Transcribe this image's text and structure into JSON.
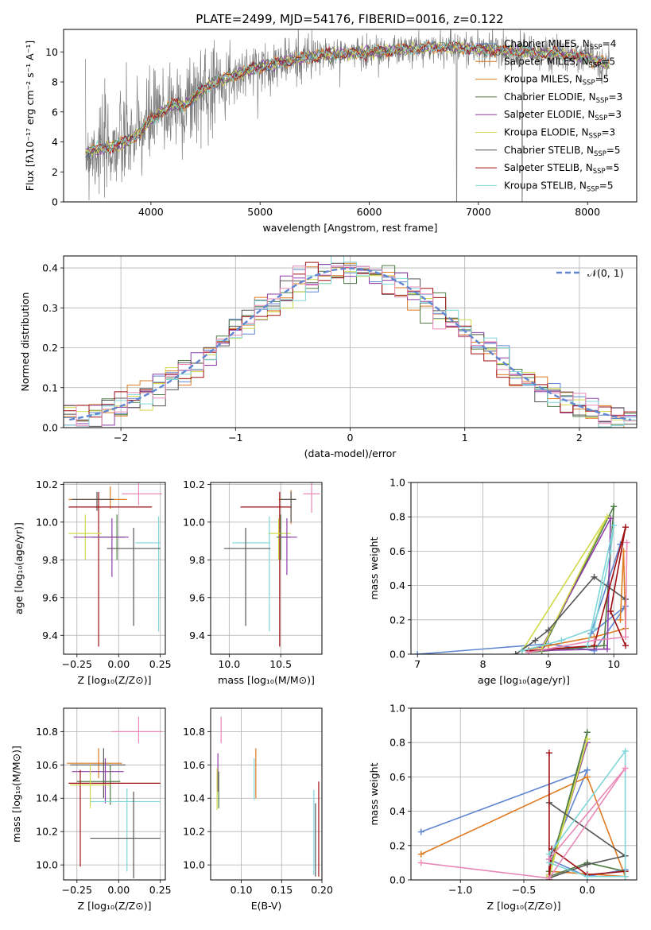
{
  "figure": {
    "title": "PLATE=2499, MJD=54176, FIBERID=0016, z=0.122",
    "colors": {
      "blue": "#5f86d1",
      "orange": "#de7b22",
      "green": "#4f7b44",
      "purple": "#8e3ca6",
      "yellow": "#cfd94a",
      "dark": "#555555",
      "red": "#a00f13",
      "cyan": "#7fd6d9",
      "pink": "#e889b8",
      "gray": "#7f7f7f"
    }
  },
  "chart_data": [
    {
      "id": "spectrum",
      "type": "line",
      "xlabel": "wavelength [Angstrom, rest frame]",
      "ylabel": "Flux [fλ10⁻¹⁷ erg cm⁻² s⁻¹ A⁻¹]",
      "xlim": [
        3200,
        8450
      ],
      "ylim": [
        0,
        11.5
      ],
      "xticks": [
        4000,
        5000,
        6000,
        7000,
        8000
      ],
      "yticks": [
        0,
        2,
        4,
        6,
        8,
        10
      ],
      "grid": false,
      "legend_position": "top-right",
      "continuum": {
        "x": [
          3400,
          3500,
          3600,
          3700,
          3800,
          3900,
          4000,
          4100,
          4200,
          4300,
          4400,
          4500,
          4600,
          4700,
          4800,
          4900,
          5000,
          5200,
          5400,
          5600,
          5800,
          6000,
          6200,
          6400,
          6600,
          6800,
          7000,
          7200,
          7400,
          7600,
          7800,
          8000,
          8200
        ],
        "y": [
          3.3,
          3.5,
          3.6,
          3.8,
          4.1,
          4.6,
          5.5,
          6.0,
          6.5,
          6.4,
          7.0,
          7.6,
          8.0,
          8.3,
          8.5,
          8.8,
          9.0,
          9.3,
          9.6,
          9.8,
          9.9,
          10.0,
          10.1,
          10.2,
          10.3,
          10.3,
          10.2,
          10.1,
          10.0,
          9.9,
          9.8,
          9.6,
          9.2
        ]
      },
      "series": [
        {
          "name": "Chabrier MILES, N_SSP=4",
          "label": "Chabrier MILES, N",
          "sub": "SSP",
          "suffix": "=4",
          "color": "blue"
        },
        {
          "name": "Salpeter MILES, N_SSP=5",
          "label": "Salpeter MILES, N",
          "sub": "SSP",
          "suffix": "=5",
          "color": "orange"
        },
        {
          "name": "Kroupa MILES, N_SSP=5",
          "label": "Kroupa MILES, N",
          "sub": "SSP",
          "suffix": "=5",
          "color": "orange"
        },
        {
          "name": "Chabrier ELODIE, N_SSP=3",
          "label": "Chabrier ELODIE, N",
          "sub": "SSP",
          "suffix": "=3",
          "color": "green"
        },
        {
          "name": "Salpeter ELODIE, N_SSP=3",
          "label": "Salpeter ELODIE, N",
          "sub": "SSP",
          "suffix": "=3",
          "color": "purple"
        },
        {
          "name": "Kroupa ELODIE, N_SSP=3",
          "label": "Kroupa ELODIE, N",
          "sub": "SSP",
          "suffix": "=3",
          "color": "yellow"
        },
        {
          "name": "Chabrier STELIB, N_SSP=5",
          "label": "Chabrier STELIB, N",
          "sub": "SSP",
          "suffix": "=5",
          "color": "dark"
        },
        {
          "name": "Salpeter STELIB, N_SSP=5",
          "label": "Salpeter STELIB, N",
          "sub": "SSP",
          "suffix": "=5",
          "color": "red"
        },
        {
          "name": "Kroupa STELIB, N_SSP=5",
          "label": "Kroupa STELIB, N",
          "sub": "SSP",
          "suffix": "=5",
          "color": "cyan"
        }
      ]
    },
    {
      "id": "residuals",
      "type": "histogram",
      "xlabel": "(data-model)/error",
      "ylabel": "Normed distribution",
      "xlim": [
        -2.5,
        2.5
      ],
      "ylim": [
        0,
        0.43
      ],
      "xticks": [
        -2,
        -1,
        0,
        1,
        2
      ],
      "yticks": [
        0.0,
        0.1,
        0.2,
        0.3,
        0.4
      ],
      "grid": true,
      "legend_position": "top-right",
      "gaussian_label": "𝒩(0, 1)",
      "gaussian_color": "blue",
      "bin_edges_range": [
        -2.5,
        2.5
      ],
      "bins": 45,
      "series_colors": [
        "blue",
        "orange",
        "green",
        "purple",
        "yellow",
        "dark",
        "red",
        "cyan",
        "pink"
      ]
    },
    {
      "id": "age-Z",
      "type": "scatter",
      "xlabel": "Z [log₁₀(Z/Z⊙)]",
      "ylabel": "age  [log₁₀(age/yr)]",
      "xlim": [
        -0.33,
        0.28
      ],
      "ylim": [
        9.3,
        10.21
      ],
      "xticks": [
        -0.25,
        0.0,
        0.25
      ],
      "yticks": [
        9.4,
        9.6,
        9.8,
        10.0,
        10.2
      ],
      "grid": true,
      "points": [
        {
          "x": 0.12,
          "y": 10.15,
          "xerr": [
            0.1,
            0.14
          ],
          "yerr": [
            0.06,
            0.06
          ],
          "color": "pink"
        },
        {
          "x": -0.05,
          "y": 10.12,
          "xerr": [
            0.25,
            0.1
          ],
          "yerr": [
            0.05,
            0.07
          ],
          "color": "orange"
        },
        {
          "x": -0.13,
          "y": 10.12,
          "xerr": [
            0.15,
            0.1
          ],
          "yerr": [
            0.06,
            0.04
          ],
          "color": "dark"
        },
        {
          "x": -0.12,
          "y": 10.08,
          "xerr": [
            0.18,
            0.32
          ],
          "yerr": [
            0.74,
            0.08
          ],
          "color": "red"
        },
        {
          "x": -0.2,
          "y": 9.94,
          "xerr": [
            0.1,
            0.1
          ],
          "yerr": [
            0.14,
            0.1
          ],
          "color": "yellow"
        },
        {
          "x": -0.01,
          "y": 9.92,
          "xerr": [
            0.15,
            0.05
          ],
          "yerr": [
            0.12,
            0.12
          ],
          "color": "green"
        },
        {
          "x": -0.04,
          "y": 9.92,
          "xerr": [
            0.23,
            0.1
          ],
          "yerr": [
            0.21,
            0.1
          ],
          "color": "purple"
        },
        {
          "x": 0.24,
          "y": 9.89,
          "xerr": [
            0.14,
            0.01
          ],
          "yerr": [
            0.47,
            0.14
          ],
          "color": "cyan"
        },
        {
          "x": 0.09,
          "y": 9.86,
          "xerr": [
            0.16,
            0.16
          ],
          "yerr": [
            0.41,
            0.11
          ],
          "color": "dark"
        }
      ]
    },
    {
      "id": "age-mass",
      "type": "scatter",
      "xlabel": "mass [log₁₀(M/M⊙)]",
      "ylabel": "",
      "xlim": [
        9.82,
        10.9
      ],
      "ylim": [
        9.3,
        10.21
      ],
      "xticks": [
        10.0,
        10.5
      ],
      "yticks": [
        9.4,
        9.6,
        9.8,
        10.0,
        10.2
      ],
      "grid": true,
      "points": [
        {
          "x": 10.8,
          "y": 10.15,
          "xerr": [
            0.08,
            0.08
          ],
          "yerr": [
            0.1,
            0.06
          ],
          "color": "pink"
        },
        {
          "x": 10.6,
          "y": 10.12,
          "xerr": [
            0.12,
            0.04
          ],
          "yerr": [
            0.13,
            0.05
          ],
          "color": "orange"
        },
        {
          "x": 10.6,
          "y": 10.12,
          "xerr": [
            0.1,
            0.05
          ],
          "yerr": [
            0.12,
            0.04
          ],
          "color": "dark"
        },
        {
          "x": 10.49,
          "y": 10.08,
          "xerr": [
            0.38,
            0.11
          ],
          "yerr": [
            0.74,
            0.08
          ],
          "color": "red"
        },
        {
          "x": 10.48,
          "y": 9.94,
          "xerr": [
            0.1,
            0.12
          ],
          "yerr": [
            0.14,
            0.08
          ],
          "color": "yellow"
        },
        {
          "x": 10.5,
          "y": 9.92,
          "xerr": [
            0.04,
            0.1
          ],
          "yerr": [
            0.12,
            0.12
          ],
          "color": "green"
        },
        {
          "x": 10.56,
          "y": 9.92,
          "xerr": [
            0.08,
            0.1
          ],
          "yerr": [
            0.2,
            0.1
          ],
          "color": "purple"
        },
        {
          "x": 10.39,
          "y": 9.89,
          "xerr": [
            0.36,
            0.01
          ],
          "yerr": [
            0.47,
            0.14
          ],
          "color": "cyan"
        },
        {
          "x": 10.16,
          "y": 9.86,
          "xerr": [
            0.21,
            0.24
          ],
          "yerr": [
            0.41,
            0.11
          ],
          "color": "dark"
        }
      ]
    },
    {
      "id": "weight-age",
      "type": "line",
      "xlabel": "age  [log₁₀(age/yr)]",
      "ylabel": "mass weight",
      "xlim": [
        6.9,
        10.35
      ],
      "ylim": [
        0,
        1.0
      ],
      "xticks": [
        7,
        8,
        9,
        10
      ],
      "yticks": [
        0.0,
        0.2,
        0.4,
        0.6,
        0.8,
        1.0
      ],
      "grid": true,
      "series": [
        {
          "color": "blue",
          "x": [
            7.0,
            9.0,
            9.7,
            10.18,
            9.65,
            10.1
          ],
          "y": [
            0.0,
            0.06,
            0.02,
            0.28,
            0.12,
            0.64
          ]
        },
        {
          "color": "orange",
          "x": [
            8.6,
            9.0,
            9.7,
            10.18,
            10.15,
            10.1
          ],
          "y": [
            0.02,
            0.05,
            0.1,
            0.15,
            0.6,
            0.2
          ]
        },
        {
          "color": "green",
          "x": [
            8.7,
            9.85,
            10.0,
            8.9
          ],
          "y": [
            0.01,
            0.05,
            0.86,
            0.02
          ]
        },
        {
          "color": "purple",
          "x": [
            8.7,
            9.9,
            9.95,
            8.9
          ],
          "y": [
            0.02,
            0.03,
            0.79,
            0.04
          ]
        },
        {
          "color": "yellow",
          "x": [
            8.6,
            9.9,
            8.9
          ],
          "y": [
            0.02,
            0.8,
            0.03
          ]
        },
        {
          "color": "dark",
          "x": [
            8.5,
            8.8,
            9.0,
            9.7,
            10.18
          ],
          "y": [
            0.0,
            0.08,
            0.14,
            0.45,
            0.32
          ]
        },
        {
          "color": "red",
          "x": [
            8.7,
            9.7,
            10.18,
            9.95,
            10.18
          ],
          "y": [
            0.02,
            0.05,
            0.74,
            0.25,
            0.05
          ]
        },
        {
          "color": "cyan",
          "x": [
            8.6,
            9.2,
            9.7,
            9.95,
            10.0,
            9.6
          ],
          "y": [
            0.02,
            0.08,
            0.15,
            0.6,
            0.75,
            0.05
          ]
        },
        {
          "color": "pink",
          "x": [
            8.7,
            9.7,
            10.18,
            10.2
          ],
          "y": [
            0.01,
            0.08,
            0.1,
            0.65
          ]
        }
      ]
    },
    {
      "id": "mass-Z",
      "type": "scatter",
      "xlabel": "Z [log₁₀(Z/Z⊙)]",
      "ylabel": "mass [log₁₀(M/M⊙)]",
      "xlim": [
        -0.33,
        0.28
      ],
      "ylim": [
        9.91,
        10.94
      ],
      "xticks": [
        -0.25,
        0.0,
        0.25
      ],
      "yticks": [
        10.0,
        10.2,
        10.4,
        10.6,
        10.8
      ],
      "grid": true,
      "points": [
        {
          "x": 0.12,
          "y": 10.8,
          "xerr": [
            0.16,
            0.14
          ],
          "yerr": [
            0.07,
            0.09
          ],
          "color": "pink"
        },
        {
          "x": -0.12,
          "y": 10.61,
          "xerr": [
            0.19,
            0.14
          ],
          "yerr": [
            0.09,
            0.09
          ],
          "color": "orange"
        },
        {
          "x": -0.09,
          "y": 10.6,
          "xerr": [
            0.2,
            0.13
          ],
          "yerr": [
            0.2,
            0.1
          ],
          "color": "dark"
        },
        {
          "x": -0.08,
          "y": 10.56,
          "xerr": [
            0.2,
            0.11
          ],
          "yerr": [
            0.19,
            0.08
          ],
          "color": "purple"
        },
        {
          "x": -0.05,
          "y": 10.5,
          "xerr": [
            0.2,
            0.06
          ],
          "yerr": [
            0.14,
            0.1
          ],
          "color": "green"
        },
        {
          "x": -0.23,
          "y": 10.49,
          "xerr": [
            0.07,
            0.48
          ],
          "yerr": [
            0.5,
            0.08
          ],
          "color": "red"
        },
        {
          "x": -0.17,
          "y": 10.48,
          "xerr": [
            0.12,
            0.12
          ],
          "yerr": [
            0.14,
            0.12
          ],
          "color": "yellow"
        },
        {
          "x": 0.05,
          "y": 10.38,
          "xerr": [
            0.22,
            0.2
          ],
          "yerr": [
            0.42,
            0.08
          ],
          "color": "cyan"
        },
        {
          "x": 0.09,
          "y": 10.16,
          "xerr": [
            0.26,
            0.16
          ],
          "yerr": [
            0.24,
            0.28
          ],
          "color": "dark"
        }
      ]
    },
    {
      "id": "mass-EBV",
      "type": "scatter",
      "xlabel": "E(B-V)",
      "ylabel": "",
      "xlim": [
        0.062,
        0.2
      ],
      "ylim": [
        9.91,
        10.94
      ],
      "xticks": [
        0.1,
        0.15,
        0.2
      ],
      "yticks": [
        10.0,
        10.2,
        10.4,
        10.6,
        10.8
      ],
      "grid": true,
      "points": [
        {
          "x": 0.075,
          "y": 10.8,
          "xerr": [
            0,
            0
          ],
          "yerr": [
            0.07,
            0.09
          ],
          "color": "pink"
        },
        {
          "x": 0.118,
          "y": 10.6,
          "xerr": [
            0,
            0
          ],
          "yerr": [
            0.2,
            0.1
          ],
          "color": "orange"
        },
        {
          "x": 0.116,
          "y": 10.56,
          "xerr": [
            0,
            0
          ],
          "yerr": [
            0.17,
            0.08
          ],
          "color": "cyan"
        },
        {
          "x": 0.071,
          "y": 10.56,
          "xerr": [
            0,
            0
          ],
          "yerr": [
            0.12,
            0.11
          ],
          "color": "purple"
        },
        {
          "x": 0.07,
          "y": 10.48,
          "xerr": [
            0,
            0
          ],
          "yerr": [
            0.15,
            0.1
          ],
          "color": "yellow"
        },
        {
          "x": 0.072,
          "y": 10.46,
          "xerr": [
            0,
            0
          ],
          "yerr": [
            0.12,
            0.1
          ],
          "color": "green"
        },
        {
          "x": 0.19,
          "y": 10.21,
          "xerr": [
            0,
            0
          ],
          "yerr": [
            0.27,
            0.24
          ],
          "color": "cyan"
        },
        {
          "x": 0.192,
          "y": 10.15,
          "xerr": [
            0,
            0
          ],
          "yerr": [
            0.22,
            0.22
          ],
          "color": "dark"
        },
        {
          "x": 0.196,
          "y": 10.2,
          "xerr": [
            0,
            0
          ],
          "yerr": [
            0.27,
            0.3
          ],
          "color": "red"
        }
      ]
    },
    {
      "id": "weight-Z",
      "type": "line",
      "xlabel": "Z [log₁₀(Z/Z⊙)]",
      "ylabel": "mass weight",
      "xlim": [
        -1.39,
        0.39
      ],
      "ylim": [
        0,
        1.0
      ],
      "xticks": [
        -1.0,
        -0.5,
        0.0
      ],
      "yticks": [
        0.0,
        0.2,
        0.4,
        0.6,
        0.8,
        1.0
      ],
      "grid": true,
      "series": [
        {
          "color": "blue",
          "x": [
            -1.31,
            0.0,
            -0.3,
            0.0,
            0.3
          ],
          "y": [
            0.28,
            0.64,
            0.12,
            0.02,
            0.06
          ]
        },
        {
          "color": "orange",
          "x": [
            -1.31,
            0.0,
            0.3,
            -0.3
          ],
          "y": [
            0.15,
            0.6,
            0.02,
            0.05
          ]
        },
        {
          "color": "green",
          "x": [
            -0.3,
            0.0,
            -0.3,
            0.0,
            0.3
          ],
          "y": [
            0.05,
            0.86,
            0.02,
            0.1,
            0.05
          ]
        },
        {
          "color": "purple",
          "x": [
            -0.3,
            0.0,
            -0.3
          ],
          "y": [
            0.03,
            0.8,
            0.03
          ]
        },
        {
          "color": "yellow",
          "x": [
            -0.3,
            0.0,
            -0.3
          ],
          "y": [
            0.02,
            0.82,
            0.03
          ]
        },
        {
          "color": "dark",
          "x": [
            -0.3,
            0.0,
            0.3,
            -0.3
          ],
          "y": [
            0.01,
            0.09,
            0.14,
            0.45
          ]
        },
        {
          "color": "red",
          "x": [
            -0.3,
            -0.3,
            -0.28,
            0.0,
            0.3
          ],
          "y": [
            0.74,
            0.0,
            0.18,
            0.03,
            0.05
          ]
        },
        {
          "color": "cyan",
          "x": [
            -0.3,
            0.3,
            0.3,
            0.0,
            -0.3
          ],
          "y": [
            0.15,
            0.75,
            0.02,
            0.02,
            0.1
          ]
        },
        {
          "color": "pink",
          "x": [
            -1.31,
            -0.3,
            0.3,
            -0.3
          ],
          "y": [
            0.1,
            0.01,
            0.65,
            0.12
          ]
        }
      ]
    }
  ]
}
